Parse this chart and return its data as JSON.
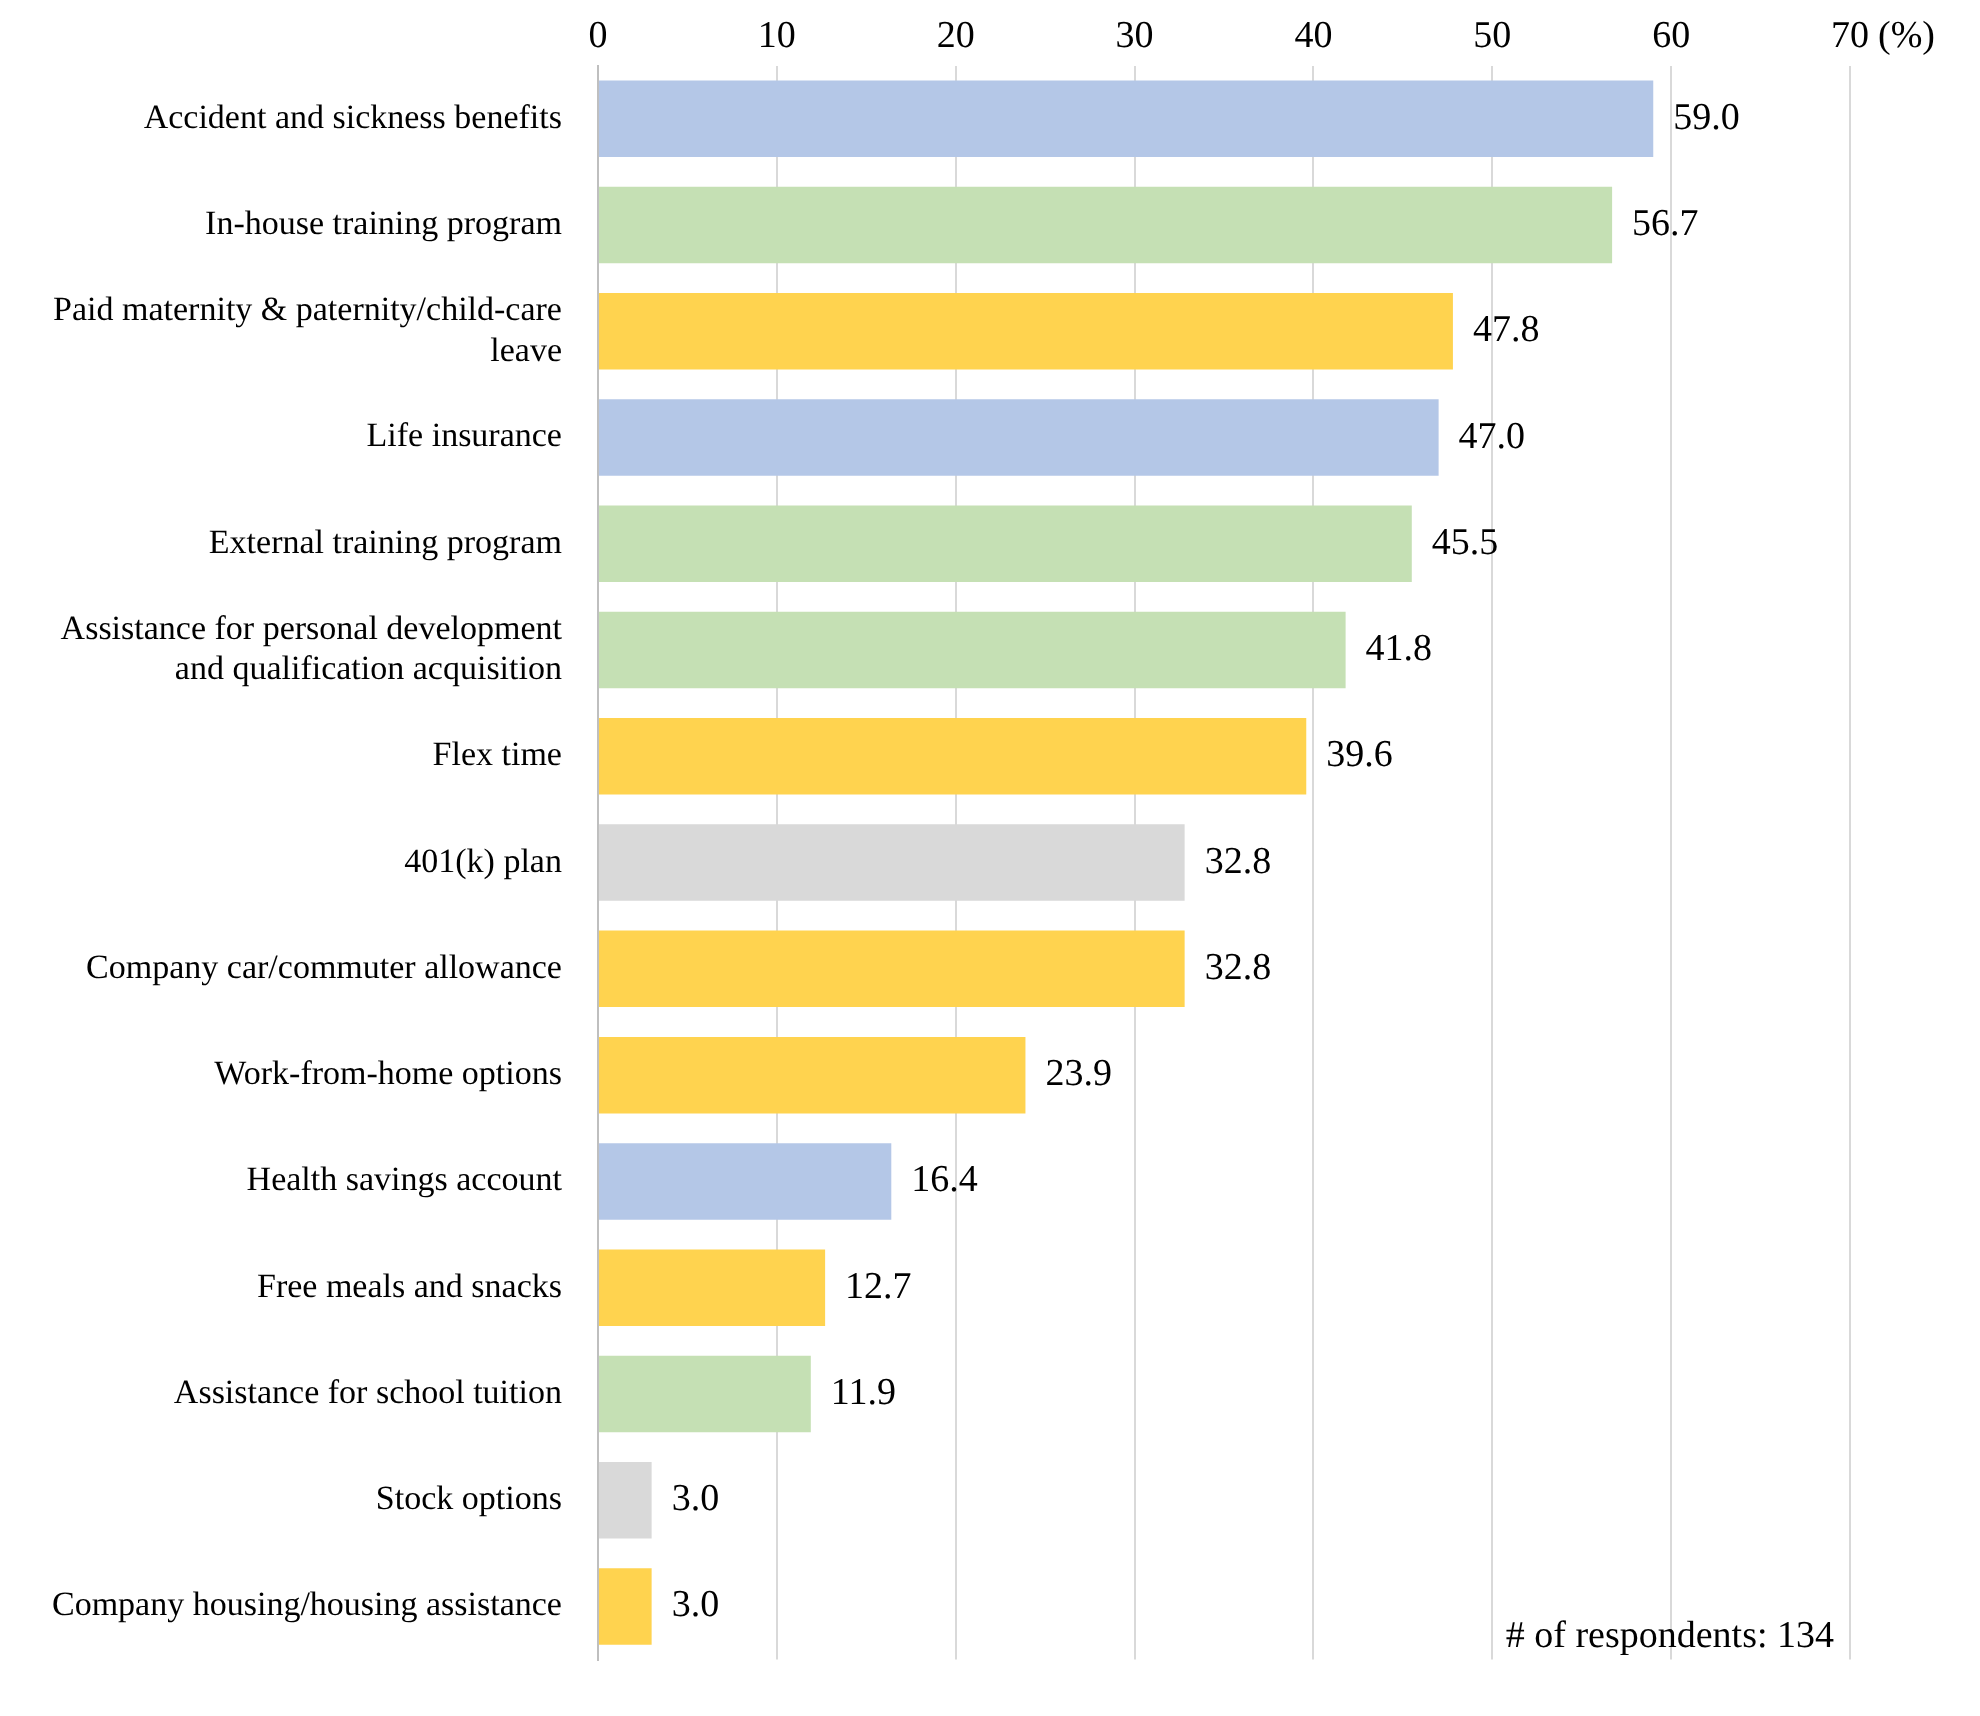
{
  "chart_data": {
    "type": "bar",
    "orientation": "horizontal",
    "xlabel": "(%)",
    "categories": [
      "Accident and sickness benefits",
      "In-house training program",
      "Paid maternity & paternity/child-care leave",
      "Life insurance",
      "External training program",
      "Assistance for personal development and qualification acquisition",
      "Flex time",
      "401(k) plan",
      "Company car/commuter allowance",
      "Work-from-home options",
      "Health savings account",
      "Free meals and snacks",
      "Assistance for school tuition",
      "Stock options",
      "Company housing/housing assistance"
    ],
    "values": [
      59.0,
      56.7,
      47.8,
      47.0,
      45.5,
      41.8,
      39.6,
      32.8,
      32.8,
      23.9,
      16.4,
      12.7,
      11.9,
      3.0,
      3.0
    ],
    "colors": [
      "#b4c7e7",
      "#c5e0b4",
      "#ffd34f",
      "#b4c7e7",
      "#c5e0b4",
      "#c5e0b4",
      "#ffd34f",
      "#d9d9d9",
      "#ffd34f",
      "#ffd34f",
      "#b4c7e7",
      "#ffd34f",
      "#c5e0b4",
      "#d9d9d9",
      "#ffd34f"
    ],
    "value_labels": [
      "59.0",
      "56.7",
      "47.8",
      "47.0",
      "45.5",
      "41.8",
      "39.6",
      "32.8",
      "32.8",
      "23.9",
      "16.4",
      "12.7",
      "11.9",
      "3.0",
      "3.0"
    ],
    "xlim": [
      0,
      70
    ],
    "xticks": [
      0,
      10,
      20,
      30,
      40,
      50,
      60,
      70
    ],
    "grid": "x",
    "legend": false,
    "annotations": [
      "# of respondents: 134"
    ]
  }
}
